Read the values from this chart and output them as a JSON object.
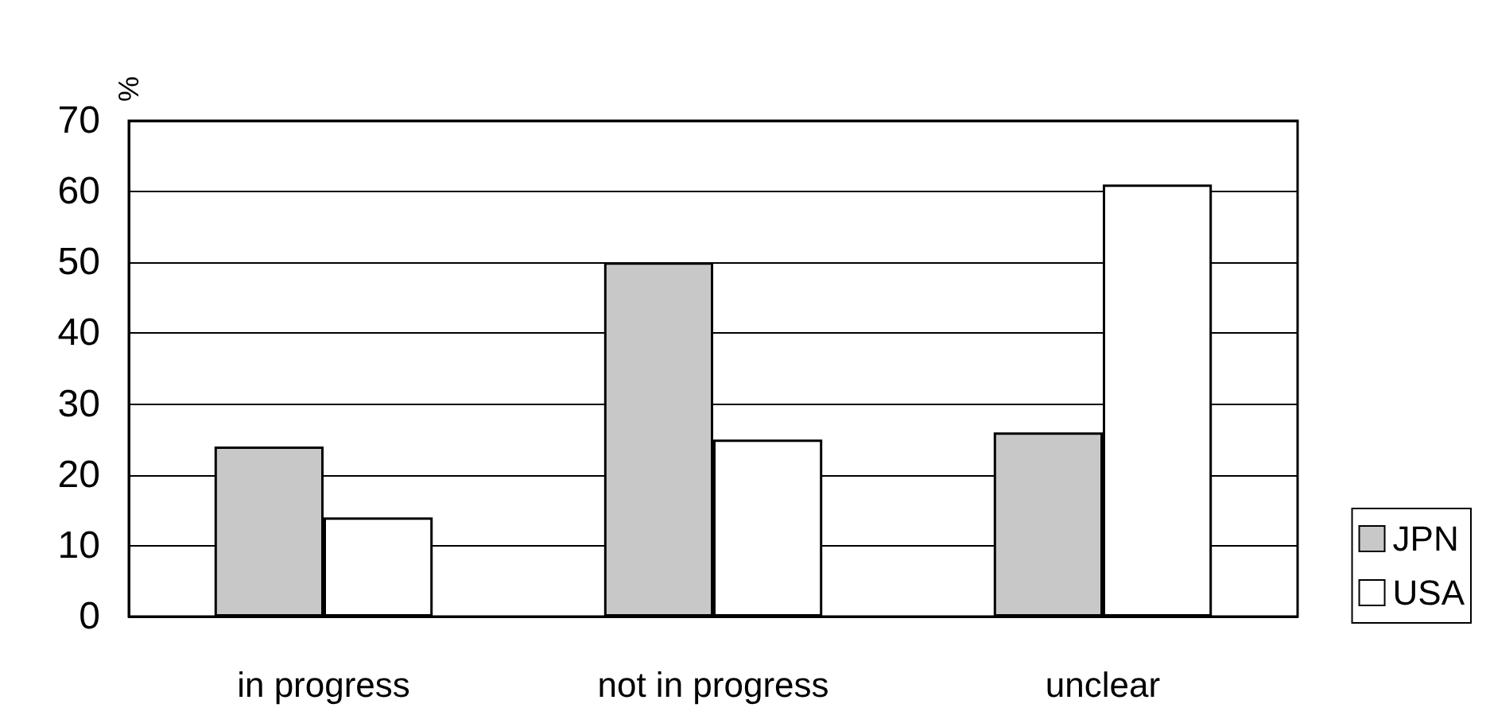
{
  "chart_data": {
    "type": "bar",
    "ylabel": "%",
    "categories": [
      "in progress",
      "not in progress",
      "unclear"
    ],
    "series": [
      {
        "name": "JPN",
        "color": "#c8c8c8",
        "values": [
          24,
          50,
          26
        ]
      },
      {
        "name": "USA",
        "color": "#ffffff",
        "values": [
          14,
          25,
          61
        ]
      }
    ],
    "ylim": [
      0,
      70
    ],
    "yticks": [
      0,
      10,
      20,
      30,
      40,
      50,
      60,
      70
    ],
    "grid": "y",
    "legend": "bottom right"
  }
}
